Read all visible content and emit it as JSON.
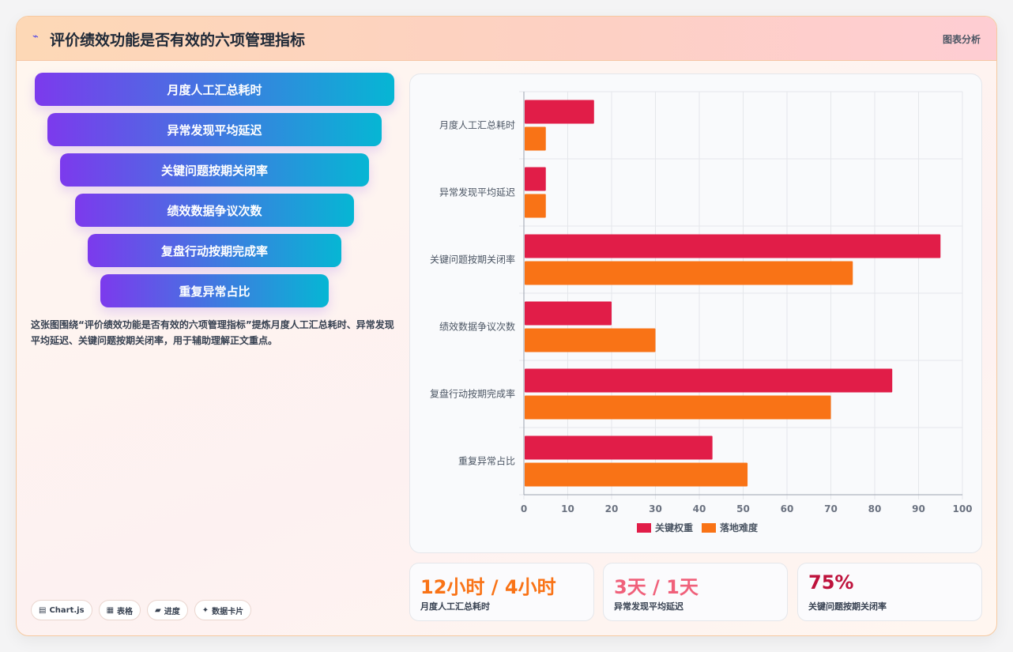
{
  "header": {
    "icon": "sparkle-icon",
    "title": "评价绩效功能是否有效的六项管理指标",
    "tag": "图表分析"
  },
  "funnel": [
    {
      "label": "月度人工汇总耗时"
    },
    {
      "label": "异常发现平均延迟"
    },
    {
      "label": "关键问题按期关闭率"
    },
    {
      "label": "绩效数据争议次数"
    },
    {
      "label": "复盘行动按期完成率"
    },
    {
      "label": "重复异常占比"
    }
  ],
  "description": "这张图围绕“评价绩效功能是否有效的六项管理指标”提炼月度人工汇总耗时、异常发现平均延迟、关键问题按期关闭率，用于辅助理解正文重点。",
  "chips": [
    {
      "icon": "chart-icon",
      "label": "Chart.js"
    },
    {
      "icon": "table-icon",
      "label": "表格"
    },
    {
      "icon": "progress-icon",
      "label": "进度"
    },
    {
      "icon": "sparkle-icon",
      "label": "数据卡片"
    }
  ],
  "stats": [
    {
      "value": "12小时 / 4小时",
      "label": "月度人工汇总耗时",
      "color": "#f97316"
    },
    {
      "value": "3天 / 1天",
      "label": "异常发现平均延迟",
      "color": "#f0607a"
    },
    {
      "value": "75%",
      "label": "关键问题按期关闭率",
      "color": "#be123c"
    }
  ],
  "chart_data": {
    "type": "bar",
    "orientation": "horizontal",
    "categories": [
      "月度人工汇总耗时",
      "异常发现平均延迟",
      "关键问题按期关闭率",
      "绩效数据争议次数",
      "复盘行动按期完成率",
      "重复异常占比"
    ],
    "series": [
      {
        "name": "关键权重",
        "color": "#e11d48",
        "values": [
          16,
          5,
          95,
          20,
          84,
          43
        ]
      },
      {
        "name": "落地难度",
        "color": "#f97316",
        "values": [
          5,
          5,
          75,
          30,
          70,
          51
        ]
      }
    ],
    "xlim": [
      0,
      100
    ],
    "xticks": [
      0,
      10,
      20,
      30,
      40,
      50,
      60,
      70,
      80,
      90,
      100
    ],
    "grid": true,
    "legend": "bottom"
  }
}
